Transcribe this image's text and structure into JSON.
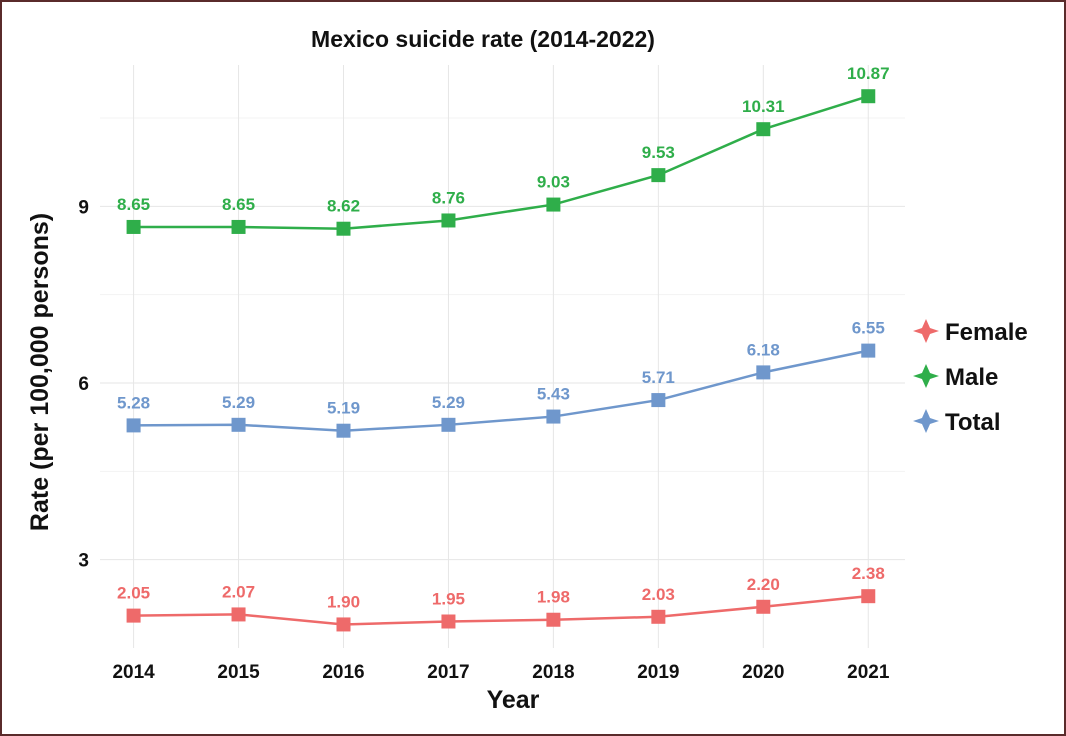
{
  "chart_data": {
    "type": "line",
    "title": "Mexico suicide rate (2014-2022)",
    "xlabel": "Year",
    "ylabel": "Rate (per 100,000 persons)",
    "x": [
      2014,
      2015,
      2016,
      2017,
      2018,
      2019,
      2020,
      2021
    ],
    "x_tick_labels": [
      "2014",
      "2015",
      "2016",
      "2017",
      "2018",
      "2019",
      "2020",
      "2021"
    ],
    "y_ticks": [
      3,
      6,
      9
    ],
    "ylim": [
      1.5,
      11.4
    ],
    "grid": true,
    "legend_position": "right",
    "series": [
      {
        "name": "Female",
        "color": "#ee6a6a",
        "values": [
          2.05,
          2.07,
          1.9,
          1.95,
          1.98,
          2.03,
          2.2,
          2.38
        ],
        "labels": [
          "2.05",
          "2.07",
          "1.90",
          "1.95",
          "1.98",
          "2.03",
          "2.20",
          "2.38"
        ]
      },
      {
        "name": "Male",
        "color": "#2fae4a",
        "values": [
          8.65,
          8.65,
          8.62,
          8.76,
          9.03,
          9.53,
          10.31,
          10.87
        ],
        "labels": [
          "8.65",
          "8.65",
          "8.62",
          "8.76",
          "9.03",
          "9.53",
          "10.31",
          "10.87"
        ]
      },
      {
        "name": "Total",
        "color": "#6f97cc",
        "values": [
          5.28,
          5.29,
          5.19,
          5.29,
          5.43,
          5.71,
          6.18,
          6.55
        ],
        "labels": [
          "5.28",
          "5.29",
          "5.19",
          "5.29",
          "5.43",
          "5.71",
          "6.18",
          "6.55"
        ]
      }
    ],
    "marker": "square"
  }
}
